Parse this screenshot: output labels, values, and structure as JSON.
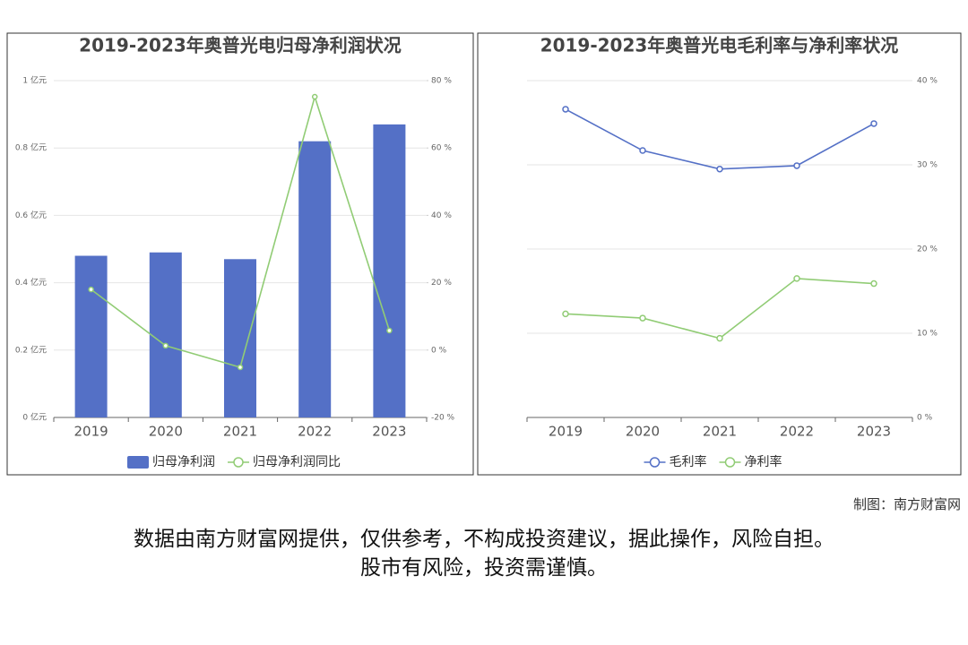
{
  "chart_data": [
    {
      "type": "bar",
      "title": "2019-2023年奥普光电归母净利润状况",
      "categories": [
        "2019",
        "2020",
        "2021",
        "2022",
        "2023"
      ],
      "series": [
        {
          "name": "归母净利润",
          "type": "bar",
          "color": "#5470c6",
          "values": [
            0.48,
            0.49,
            0.47,
            0.82,
            0.87
          ]
        },
        {
          "name": "归母净利润同比",
          "type": "line",
          "axis": "y2",
          "color": "#91cc75",
          "values": [
            18,
            1.3,
            -5.1,
            75.2,
            5.8
          ]
        }
      ],
      "ylim": [
        0,
        1
      ],
      "yticks": [
        {
          "value": 0,
          "label": "0 亿元"
        },
        {
          "value": 0.2,
          "label": "0.2 亿元"
        },
        {
          "value": 0.4,
          "label": "0.4 亿元"
        },
        {
          "value": 0.6,
          "label": "0.6 亿元"
        },
        {
          "value": 0.8,
          "label": "0.8 亿元"
        },
        {
          "value": 1,
          "label": "1 亿元"
        }
      ],
      "y2lim": [
        -20,
        80
      ],
      "y2ticks": [
        {
          "value": -20,
          "label": "-20 %"
        },
        {
          "value": 0,
          "label": "0 %"
        },
        {
          "value": 20,
          "label": "20 %"
        },
        {
          "value": 40,
          "label": "40 %"
        },
        {
          "value": 60,
          "label": "60 %"
        },
        {
          "value": 80,
          "label": "80 %"
        }
      ],
      "grid": true,
      "legend": "bottom"
    },
    {
      "type": "line",
      "title": "2019-2023年奥普光电毛利率与净利率状况",
      "categories": [
        "2019",
        "2020",
        "2021",
        "2022",
        "2023"
      ],
      "series": [
        {
          "name": "毛利率",
          "type": "line",
          "color": "#5470c6",
          "values": [
            36.6,
            31.7,
            29.5,
            29.9,
            34.9
          ]
        },
        {
          "name": "净利率",
          "type": "line",
          "color": "#91cc75",
          "values": [
            12.3,
            11.8,
            9.4,
            16.5,
            15.9
          ]
        }
      ],
      "ylim": [
        0,
        40
      ],
      "yticks": [
        {
          "value": 0,
          "label": "0 %"
        },
        {
          "value": 10,
          "label": "10 %"
        },
        {
          "value": 20,
          "label": "20 %"
        },
        {
          "value": 30,
          "label": "30 %"
        },
        {
          "value": 40,
          "label": "40 %"
        }
      ],
      "y_axis_side": "right",
      "grid": true,
      "legend": "bottom"
    }
  ],
  "footer": {
    "credit": "制图：南方财富网",
    "disclaimer": "数据由南方财富网提供，仅供参考，不构成投资建议，据此操作，风险自担。",
    "warning": "股市有风险，投资需谨慎。"
  }
}
